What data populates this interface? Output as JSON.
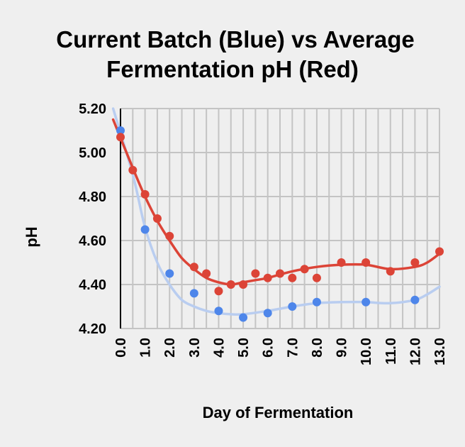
{
  "chart_data": {
    "type": "scatter",
    "title_lines": [
      "Current Batch (Blue) vs Average",
      "Fermentation pH (Red)"
    ],
    "xlabel": "Day of Fermentation",
    "ylabel": "pH",
    "xlim": [
      0,
      13
    ],
    "ylim": [
      4.2,
      5.2
    ],
    "xticks": [
      "0.0",
      "1.0",
      "2.0",
      "3.0",
      "4.0",
      "5.0",
      "6.0",
      "7.0",
      "8.0",
      "9.0",
      "10.0",
      "11.0",
      "12.0",
      "13.0"
    ],
    "yticks": [
      "5.20",
      "5.00",
      "4.80",
      "4.60",
      "4.40",
      "4.20"
    ],
    "x_minor_step": 0.5,
    "grid": true,
    "trendline": "smoothed curve",
    "series": [
      {
        "color": "#dc4437",
        "trend_color": "#dc4437",
        "points": [
          [
            0.0,
            5.07
          ],
          [
            0.5,
            4.92
          ],
          [
            1.0,
            4.81
          ],
          [
            1.5,
            4.7
          ],
          [
            2.0,
            4.62
          ],
          [
            3.0,
            4.48
          ],
          [
            3.5,
            4.45
          ],
          [
            4.0,
            4.37
          ],
          [
            4.5,
            4.4
          ],
          [
            5.0,
            4.4
          ],
          [
            5.5,
            4.45
          ],
          [
            6.0,
            4.43
          ],
          [
            6.5,
            4.45
          ],
          [
            7.0,
            4.43
          ],
          [
            7.5,
            4.47
          ],
          [
            8.0,
            4.43
          ],
          [
            9.0,
            4.5
          ],
          [
            10.0,
            4.5
          ],
          [
            11.0,
            4.46
          ],
          [
            12.0,
            4.5
          ],
          [
            13.0,
            4.55
          ]
        ],
        "trend": [
          [
            -0.3,
            5.15
          ],
          [
            0.5,
            4.93
          ],
          [
            1.0,
            4.8
          ],
          [
            1.5,
            4.69
          ],
          [
            2.0,
            4.6
          ],
          [
            2.5,
            4.52
          ],
          [
            3.0,
            4.47
          ],
          [
            3.5,
            4.43
          ],
          [
            4.0,
            4.41
          ],
          [
            4.5,
            4.4
          ],
          [
            5.0,
            4.41
          ],
          [
            5.5,
            4.42
          ],
          [
            6.0,
            4.43
          ],
          [
            7.0,
            4.46
          ],
          [
            8.0,
            4.48
          ],
          [
            9.0,
            4.49
          ],
          [
            10.0,
            4.49
          ],
          [
            11.0,
            4.47
          ],
          [
            12.0,
            4.48
          ],
          [
            12.5,
            4.5
          ],
          [
            13.0,
            4.54
          ]
        ]
      },
      {
        "color": "#4e86ea",
        "trend_color": "#b9cdf0",
        "points": [
          [
            0.0,
            5.1
          ],
          [
            1.0,
            4.65
          ],
          [
            2.0,
            4.45
          ],
          [
            3.0,
            4.36
          ],
          [
            4.0,
            4.28
          ],
          [
            5.0,
            4.25
          ],
          [
            6.0,
            4.27
          ],
          [
            7.0,
            4.3
          ],
          [
            8.0,
            4.32
          ],
          [
            10.0,
            4.32
          ],
          [
            12.0,
            4.33
          ]
        ],
        "trend": [
          [
            -0.3,
            5.2
          ],
          [
            0.5,
            4.9
          ],
          [
            1.0,
            4.66
          ],
          [
            1.5,
            4.5
          ],
          [
            2.0,
            4.4
          ],
          [
            2.5,
            4.33
          ],
          [
            3.0,
            4.3
          ],
          [
            3.5,
            4.28
          ],
          [
            4.0,
            4.27
          ],
          [
            4.5,
            4.265
          ],
          [
            5.0,
            4.265
          ],
          [
            6.0,
            4.28
          ],
          [
            7.0,
            4.3
          ],
          [
            8.0,
            4.315
          ],
          [
            9.0,
            4.32
          ],
          [
            10.0,
            4.32
          ],
          [
            11.0,
            4.315
          ],
          [
            12.0,
            4.33
          ],
          [
            12.5,
            4.355
          ],
          [
            13.0,
            4.39
          ]
        ]
      }
    ]
  }
}
